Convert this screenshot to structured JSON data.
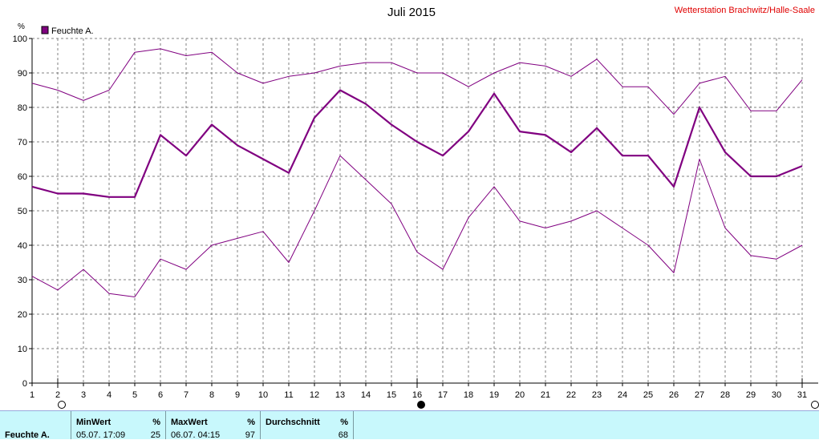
{
  "chart_data": {
    "type": "line",
    "title": "Juli 2015",
    "station": "Wetterstation Brachwitz/Halle-Saale",
    "ylabel": "%",
    "ylim": [
      0,
      100
    ],
    "yticks": [
      0,
      10,
      20,
      30,
      40,
      50,
      60,
      70,
      80,
      90,
      100
    ],
    "x": [
      1,
      2,
      3,
      4,
      5,
      6,
      7,
      8,
      9,
      10,
      11,
      12,
      13,
      14,
      15,
      16,
      17,
      18,
      19,
      20,
      21,
      22,
      23,
      24,
      25,
      26,
      27,
      28,
      29,
      30,
      31
    ],
    "legend": "Feuchte A.",
    "series": [
      {
        "role": "max",
        "values": [
          87,
          85,
          82,
          85,
          96,
          97,
          95,
          96,
          90,
          87,
          89,
          90,
          92,
          93,
          93,
          90,
          90,
          86,
          90,
          93,
          92,
          89,
          94,
          86,
          86,
          78,
          87,
          89,
          79,
          79,
          88
        ]
      },
      {
        "role": "avg",
        "values": [
          57,
          55,
          55,
          54,
          54,
          72,
          66,
          75,
          69,
          65,
          61,
          77,
          85,
          81,
          75,
          70,
          66,
          73,
          84,
          73,
          72,
          67,
          74,
          66,
          66,
          57,
          80,
          67,
          60,
          60,
          63
        ]
      },
      {
        "role": "min",
        "values": [
          31,
          27,
          33,
          26,
          25,
          36,
          33,
          40,
          42,
          44,
          35,
          50,
          66,
          59,
          52,
          38,
          33,
          48,
          57,
          47,
          45,
          47,
          50,
          45,
          40,
          32,
          65,
          45,
          37,
          36,
          40
        ]
      }
    ],
    "colors": {
      "line": "#800080",
      "grid": "#808080",
      "station": "#e00000",
      "stats_bg": "#c8f8fc"
    },
    "grid": true,
    "moon_phases": [
      {
        "day": 2,
        "phase": "full"
      },
      {
        "day": 16,
        "phase": "new"
      },
      {
        "day": 31,
        "phase": "full"
      }
    ]
  },
  "stats": {
    "row_label": "Feuchte A.",
    "min": {
      "header": "MinWert",
      "unit": "%",
      "when": "05.07.  17:09",
      "value": "25"
    },
    "max": {
      "header": "MaxWert",
      "unit": "%",
      "when": "06.07.  04:15",
      "value": "97"
    },
    "avg": {
      "header": "Durchschnitt",
      "unit": "%",
      "value": "68"
    }
  }
}
